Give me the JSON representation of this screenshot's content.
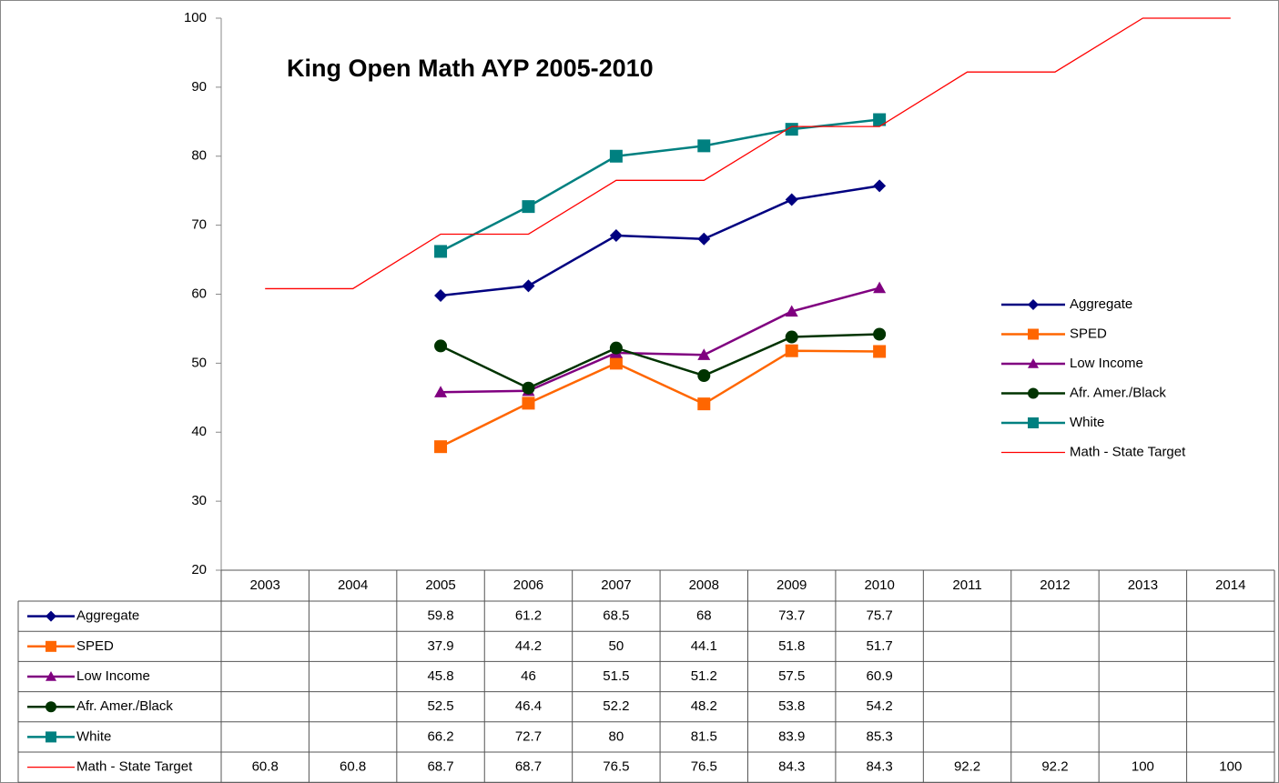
{
  "chart_data": {
    "type": "line",
    "title": "King Open Math AYP 2005-2010",
    "categories": [
      "2003",
      "2004",
      "2005",
      "2006",
      "2007",
      "2008",
      "2009",
      "2010",
      "2011",
      "2012",
      "2013",
      "2014"
    ],
    "ylim": [
      20,
      100
    ],
    "yticks": [
      20,
      30,
      40,
      50,
      60,
      70,
      80,
      90,
      100
    ],
    "grid": false,
    "legend": "right",
    "series": [
      {
        "name": "Aggregate",
        "color": "#000080",
        "marker": "diamond",
        "values": [
          null,
          null,
          59.8,
          61.2,
          68.5,
          68,
          73.7,
          75.7,
          null,
          null,
          null,
          null
        ]
      },
      {
        "name": "SPED",
        "color": "#ff6600",
        "marker": "square",
        "values": [
          null,
          null,
          37.9,
          44.2,
          50,
          44.1,
          51.8,
          51.7,
          null,
          null,
          null,
          null
        ]
      },
      {
        "name": "Low Income",
        "color": "#800080",
        "marker": "triangle",
        "values": [
          null,
          null,
          45.8,
          46,
          51.5,
          51.2,
          57.5,
          60.9,
          null,
          null,
          null,
          null
        ]
      },
      {
        "name": "Afr. Amer./Black",
        "color": "#003300",
        "marker": "circle",
        "values": [
          null,
          null,
          52.5,
          46.4,
          52.2,
          48.2,
          53.8,
          54.2,
          null,
          null,
          null,
          null
        ]
      },
      {
        "name": "White",
        "color": "#008080",
        "marker": "square",
        "values": [
          null,
          null,
          66.2,
          72.7,
          80,
          81.5,
          83.9,
          85.3,
          null,
          null,
          null,
          null
        ]
      },
      {
        "name": "Math - State Target",
        "color": "#ff0000",
        "marker": "none",
        "values": [
          60.8,
          60.8,
          68.7,
          68.7,
          76.5,
          76.5,
          84.3,
          84.3,
          92.2,
          92.2,
          100,
          100
        ]
      }
    ]
  }
}
